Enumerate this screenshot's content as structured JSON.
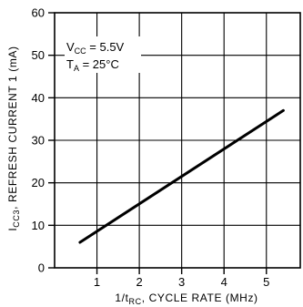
{
  "chart_data": {
    "type": "line",
    "xlabel": {
      "prefix": "1/t",
      "sub": "RC",
      "suffix": ", CYCLE RATE (MHz)"
    },
    "ylabel": {
      "prefix": "I",
      "sub": "CC3",
      "suffix": ", REFRESH CURRENT 1 (mA)"
    },
    "xlim": [
      0,
      5.8
    ],
    "ylim": [
      0,
      60
    ],
    "x_ticks": [
      1,
      2,
      3,
      4,
      5
    ],
    "y_ticks": [
      0,
      10,
      20,
      30,
      40,
      50,
      60
    ],
    "x_tick_labels": [
      "1",
      "2",
      "3",
      "4",
      "5"
    ],
    "y_tick_labels": [
      "0",
      "10",
      "20",
      "30",
      "40",
      "50",
      "60"
    ],
    "grid": true,
    "annotations": [
      {
        "main": "V",
        "sub": "CC",
        "rest": " = 5.5V"
      },
      {
        "main": "T",
        "sub": "A",
        "rest": " = 25°C"
      }
    ],
    "series": [
      {
        "x": [
          0.6,
          5.4
        ],
        "y": [
          6,
          37
        ],
        "color": "#000000"
      }
    ]
  }
}
